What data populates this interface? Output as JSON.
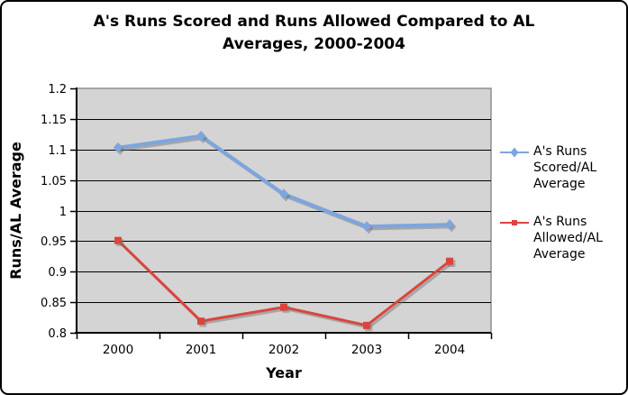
{
  "chart_data": {
    "type": "line",
    "title": "A's Runs Scored and Runs Allowed Compared to AL Averages, 2000-2004",
    "xlabel": "Year",
    "ylabel": "Runs/AL Average",
    "categories": [
      "2000",
      "2001",
      "2002",
      "2003",
      "2004"
    ],
    "series": [
      {
        "name": "A's Runs Scored/AL Average",
        "marker": "diamond",
        "color": "#7DA5DF",
        "values": [
          1.103,
          1.122,
          1.027,
          0.974,
          0.977
        ]
      },
      {
        "name": "A's Runs Allowed/AL Average",
        "marker": "square",
        "color": "#DB453D",
        "values": [
          0.951,
          0.819,
          0.842,
          0.812,
          0.917
        ]
      }
    ],
    "ylim": [
      0.8,
      1.2
    ],
    "ytick_step": 0.05,
    "ytick_labels": [
      "0.8",
      "0.85",
      "0.9",
      "0.95",
      "1",
      "1.05",
      "1.1",
      "1.15",
      "1.2"
    ],
    "grid": true,
    "legend_position": "right",
    "colors": {
      "plot_bg": "#D4D4D4",
      "plot_border": "#8E8E8E",
      "gridline": "#000000",
      "axis": "#000000",
      "shadow": "rgba(110,110,110,0.45)"
    }
  }
}
